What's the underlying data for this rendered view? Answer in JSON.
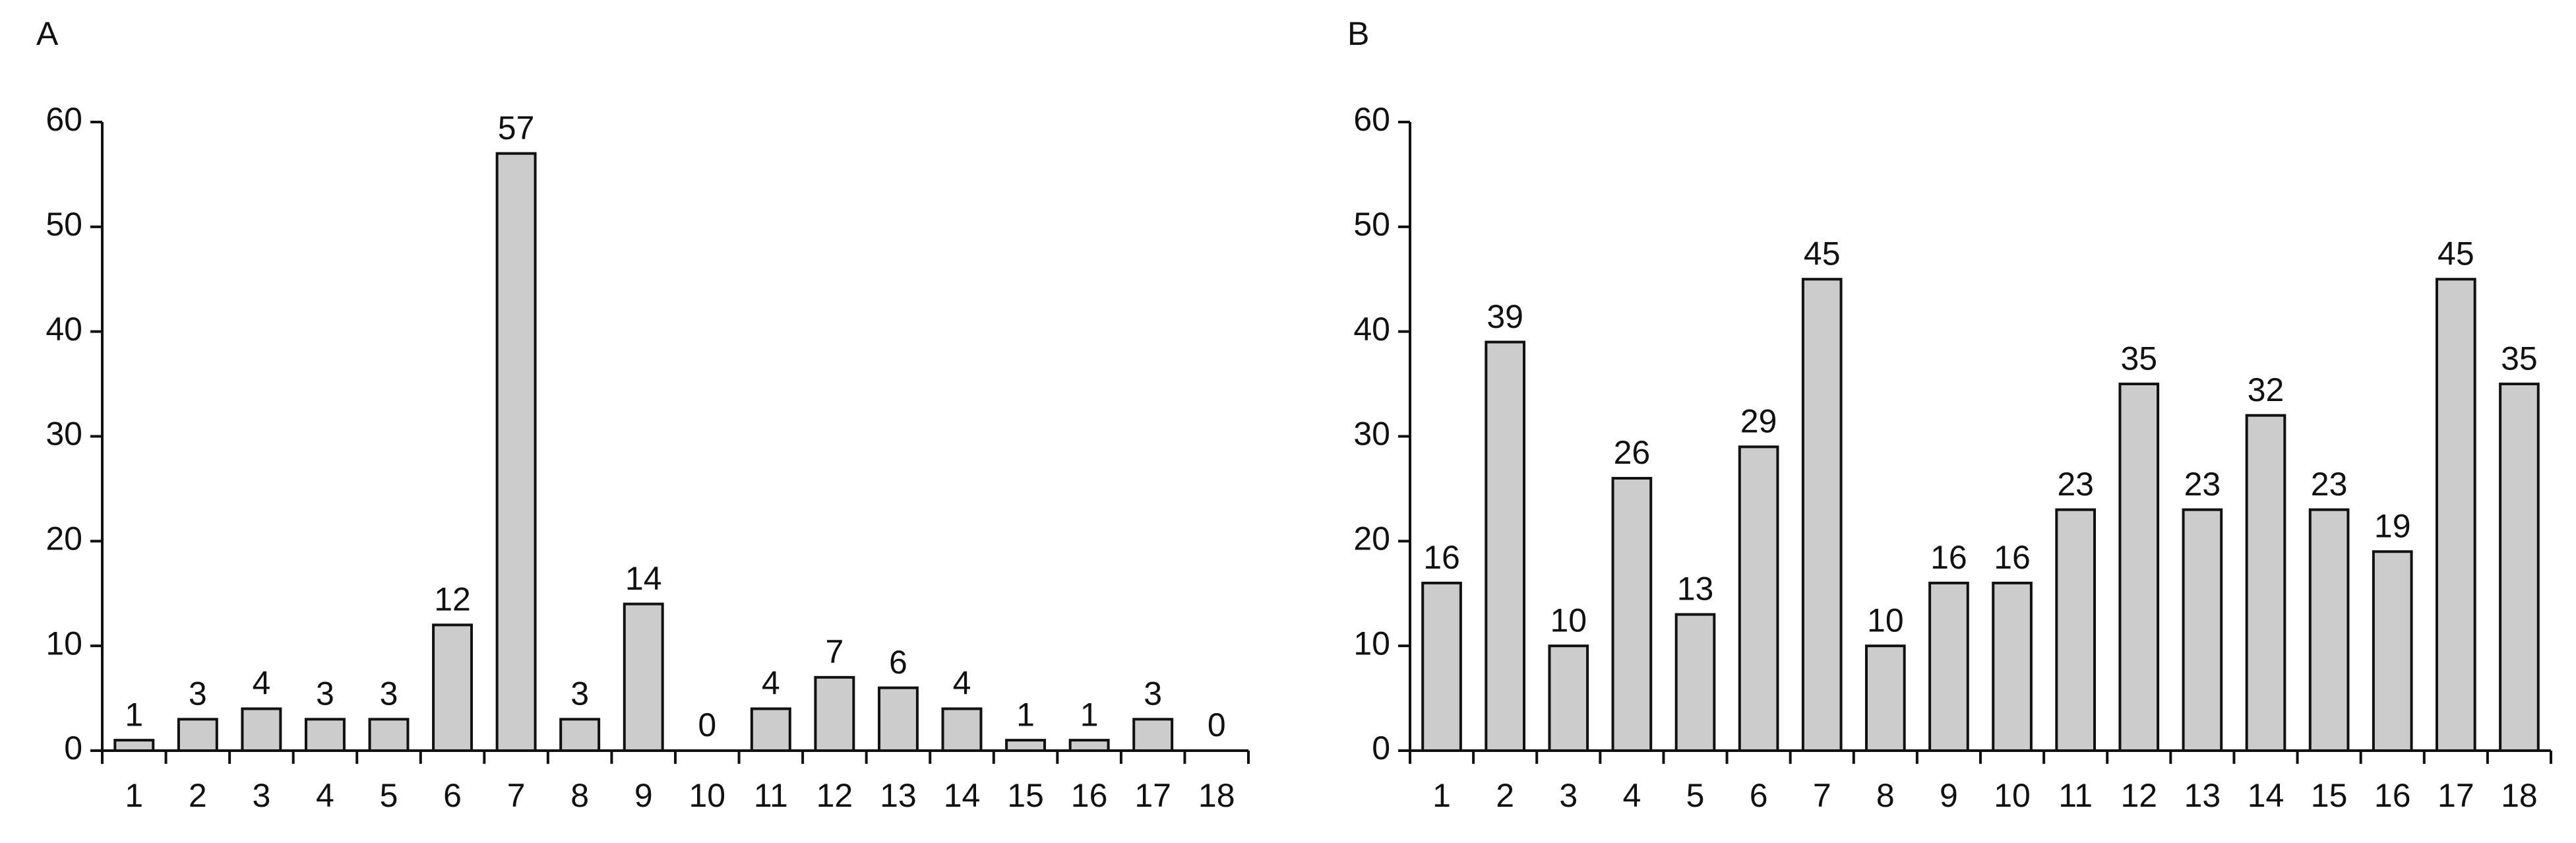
{
  "chart_data": [
    {
      "type": "bar",
      "title": "A",
      "categories": [
        "1",
        "2",
        "3",
        "4",
        "5",
        "6",
        "7",
        "8",
        "9",
        "10",
        "11",
        "12",
        "13",
        "14",
        "15",
        "16",
        "17",
        "18"
      ],
      "values": [
        1,
        3,
        4,
        3,
        3,
        12,
        57,
        3,
        14,
        0,
        4,
        7,
        6,
        4,
        1,
        1,
        3,
        0
      ],
      "color": "#cccccc",
      "ylim": [
        0,
        60
      ],
      "yticks": [
        0,
        10,
        20,
        30,
        40,
        50,
        60
      ]
    },
    {
      "type": "bar",
      "title": "B",
      "categories": [
        "1",
        "2",
        "3",
        "4",
        "5",
        "6",
        "7",
        "8",
        "9",
        "10",
        "11",
        "12",
        "13",
        "14",
        "15",
        "16",
        "17",
        "18"
      ],
      "values": [
        16,
        39,
        10,
        26,
        13,
        29,
        45,
        10,
        16,
        16,
        23,
        35,
        23,
        32,
        23,
        19,
        45,
        35
      ],
      "color": "#cccccc",
      "ylim": [
        0,
        60
      ],
      "yticks": [
        0,
        10,
        20,
        30,
        40,
        50,
        60
      ]
    }
  ]
}
